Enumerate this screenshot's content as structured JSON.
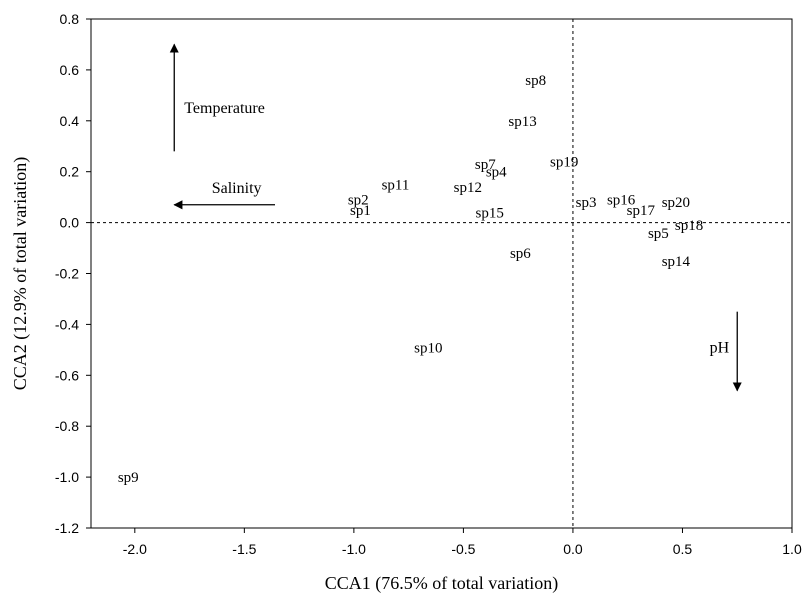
{
  "chart_data": {
    "type": "scatter",
    "xlabel": "CCA1  (76.5% of total variation)",
    "ylabel": "CCA2 (12.9% of total variation)",
    "xlim": [
      -2.2,
      1.0
    ],
    "ylim": [
      -1.2,
      0.8
    ],
    "x_ticks": [
      "-2.0",
      "-1.5",
      "-1.0",
      "-0.5",
      "0.0",
      "0.5",
      "1.0"
    ],
    "y_ticks": [
      "0.8",
      "0.6",
      "0.4",
      "0.2",
      "0.0",
      "-0.2",
      "-0.4",
      "-0.6",
      "-0.8",
      "-1.0",
      "-1.2"
    ],
    "reference_lines": {
      "x": 0.0,
      "y": 0.0,
      "style": "dashed"
    },
    "points": [
      {
        "label": "sp1",
        "x": -0.97,
        "y": 0.05
      },
      {
        "label": "sp2",
        "x": -0.98,
        "y": 0.09
      },
      {
        "label": "sp3",
        "x": 0.06,
        "y": 0.08
      },
      {
        "label": "sp4",
        "x": -0.35,
        "y": 0.2
      },
      {
        "label": "sp5",
        "x": 0.39,
        "y": -0.04
      },
      {
        "label": "sp6",
        "x": -0.24,
        "y": -0.12
      },
      {
        "label": "sp7",
        "x": -0.4,
        "y": 0.23
      },
      {
        "label": "sp8",
        "x": -0.17,
        "y": 0.56
      },
      {
        "label": "sp9",
        "x": -2.03,
        "y": -1.0
      },
      {
        "label": "sp10",
        "x": -0.66,
        "y": -0.49
      },
      {
        "label": "sp11",
        "x": -0.81,
        "y": 0.15
      },
      {
        "label": "sp12",
        "x": -0.48,
        "y": 0.14
      },
      {
        "label": "sp13",
        "x": -0.23,
        "y": 0.4
      },
      {
        "label": "sp14",
        "x": 0.47,
        "y": -0.15
      },
      {
        "label": "sp15",
        "x": -0.38,
        "y": 0.04
      },
      {
        "label": "sp16",
        "x": 0.22,
        "y": 0.09
      },
      {
        "label": "sp17",
        "x": 0.31,
        "y": 0.05
      },
      {
        "label": "sp18",
        "x": 0.53,
        "y": -0.01
      },
      {
        "label": "sp19",
        "x": -0.04,
        "y": 0.24
      },
      {
        "label": "sp20",
        "x": 0.47,
        "y": 0.08
      }
    ],
    "environmental_vectors": [
      {
        "label": "Temperature",
        "from": [
          -1.82,
          0.28
        ],
        "to": [
          -1.82,
          0.7
        ]
      },
      {
        "label": "Salinity",
        "from": [
          -1.36,
          0.07
        ],
        "to": [
          -1.82,
          0.07
        ]
      },
      {
        "label": "pH",
        "from": [
          0.75,
          -0.35
        ],
        "to": [
          0.75,
          -0.66
        ]
      }
    ],
    "grid": false
  }
}
